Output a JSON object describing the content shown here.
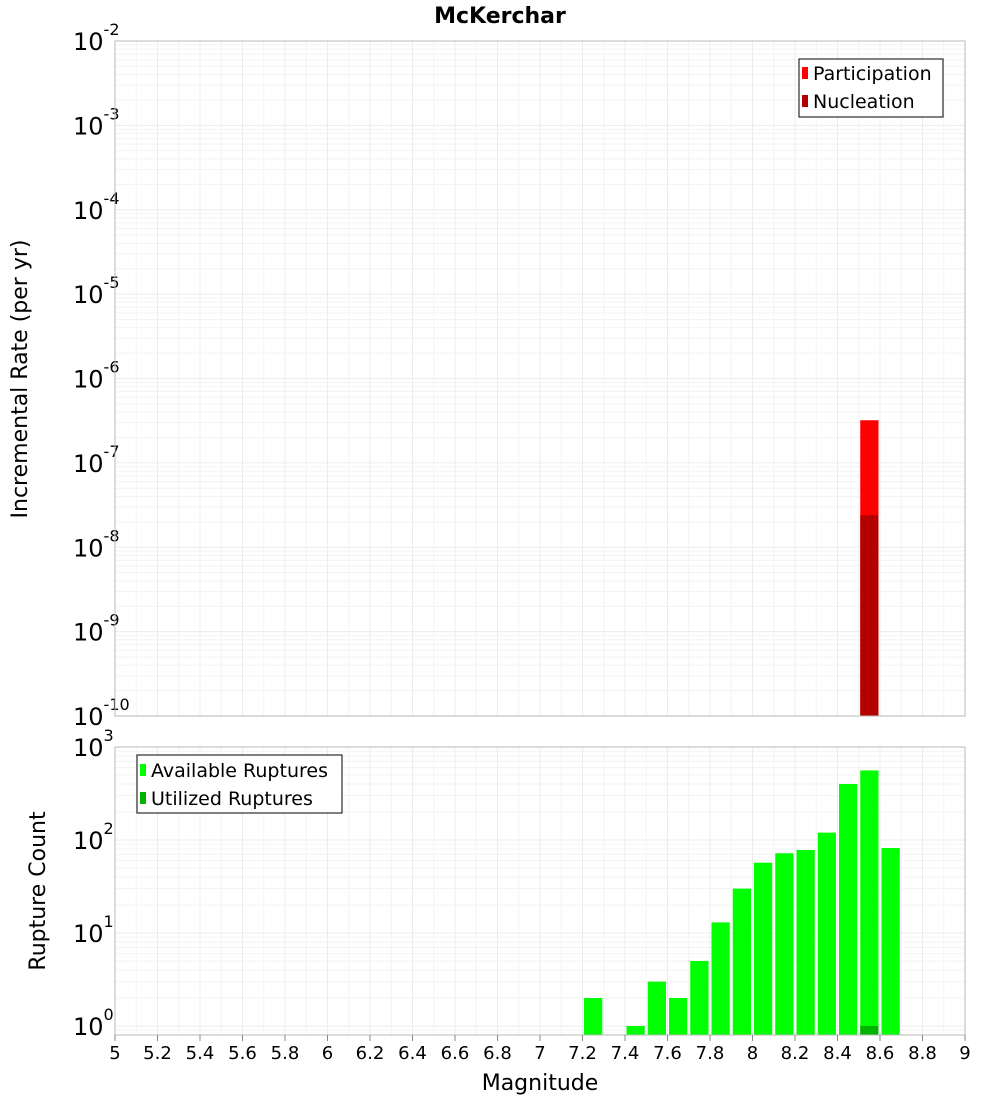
{
  "chart_data": [
    {
      "type": "bar",
      "title": "McKerchar",
      "ylabel": "Incremental Rate (per yr)",
      "yscale": "log",
      "ylim": [
        1e-10,
        0.01
      ],
      "xlim": [
        5,
        9
      ],
      "bin_width": 0.1,
      "y_tick_exponents": [
        "-10",
        "-9",
        "-8",
        "-7",
        "-6",
        "-5",
        "-4",
        "-3",
        "-2"
      ],
      "y_tick_base": "10",
      "legend": {
        "placement": "top-right",
        "entries": [
          "Participation",
          "Nucleation"
        ]
      },
      "series": [
        {
          "name": "Participation",
          "color": "#ff0000",
          "x": [
            8.55
          ],
          "values": [
            3.2e-07
          ]
        },
        {
          "name": "Nucleation",
          "color": "#b30000",
          "x": [
            8.55
          ],
          "values": [
            2.4e-08
          ]
        }
      ]
    },
    {
      "type": "bar",
      "ylabel": "Rupture Count",
      "xlabel": "Magnitude",
      "yscale": "log",
      "ylim": [
        0.8,
        1000
      ],
      "xlim": [
        5,
        9
      ],
      "bin_width": 0.1,
      "y_tick_exponents": [
        "0",
        "1",
        "2",
        "3"
      ],
      "y_tick_base": "10",
      "x_ticks": [
        "5",
        "5.2",
        "5.4",
        "5.6",
        "5.8",
        "6",
        "6.2",
        "6.4",
        "6.6",
        "6.8",
        "7",
        "7.2",
        "7.4",
        "7.6",
        "7.8",
        "8",
        "8.2",
        "8.4",
        "8.6",
        "8.8",
        "9"
      ],
      "legend": {
        "placement": "top-left",
        "entries": [
          "Available Ruptures",
          "Utilized Ruptures"
        ]
      },
      "series": [
        {
          "name": "Available Ruptures",
          "color": "#00ff00",
          "x": [
            7.25,
            7.45,
            7.55,
            7.65,
            7.75,
            7.85,
            7.95,
            8.05,
            8.15,
            8.25,
            8.35,
            8.45,
            8.55,
            8.65
          ],
          "values": [
            2,
            1,
            3,
            2,
            5,
            13,
            30,
            57,
            72,
            78,
            120,
            400,
            560,
            82
          ]
        },
        {
          "name": "Utilized Ruptures",
          "color": "#00b300",
          "x": [
            8.55
          ],
          "values": [
            1
          ]
        }
      ]
    }
  ]
}
